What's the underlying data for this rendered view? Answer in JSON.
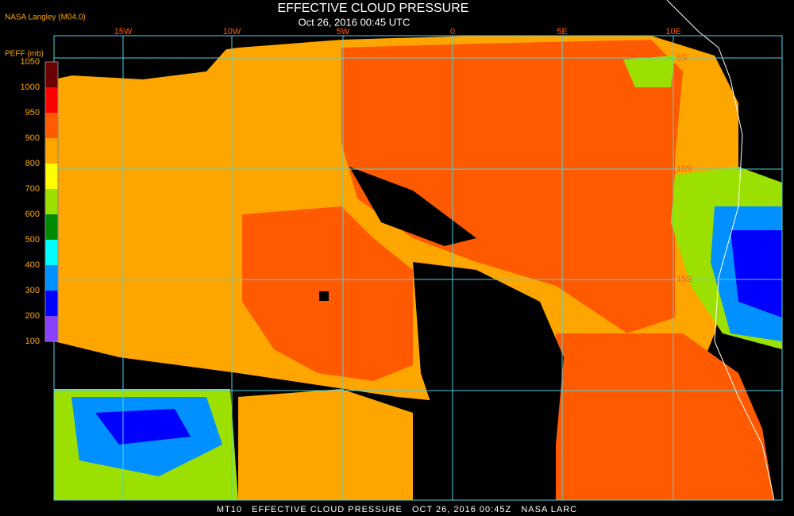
{
  "header": {
    "title": "EFFECTIVE CLOUD PRESSURE",
    "subtitle": "Oct 26, 2016 00:45 UTC",
    "source": "NASA Langley (M04.0)"
  },
  "legend": {
    "title": "PEFF (mb)",
    "labels": [
      "1050",
      "1000",
      "950",
      "900",
      "800",
      "700",
      "600",
      "500",
      "400",
      "300",
      "200",
      "100"
    ],
    "colors": [
      "#6a0000",
      "#ff0000",
      "#ff5a00",
      "#ffa500",
      "#ffff00",
      "#9be000",
      "#008a00",
      "#00ffff",
      "#0090ff",
      "#0000ff",
      "#8a40ff"
    ]
  },
  "map": {
    "lon_labels": [
      "15W",
      "10W",
      "5W",
      "0",
      "5E",
      "10E"
    ],
    "lat_labels": [
      "5S",
      "10S",
      "15S"
    ]
  },
  "footer": "MT10   EFFECTIVE CLOUD PRESSURE   OCT 26, 2016 00:45Z   NASA LARC"
}
